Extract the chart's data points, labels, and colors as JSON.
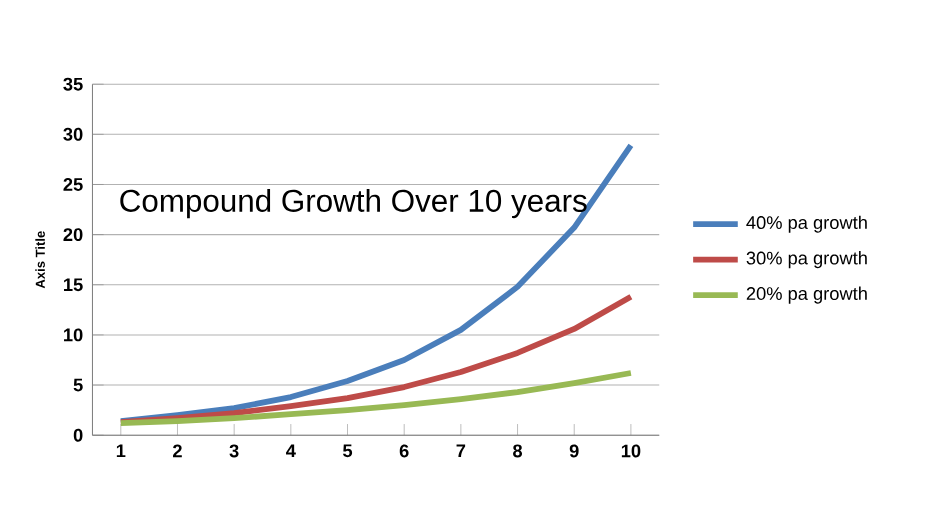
{
  "chart_data": {
    "type": "line",
    "title": "Compound Growth Over 10 years",
    "ylabel": "Axis Title",
    "categories": [
      "1",
      "2",
      "3",
      "4",
      "5",
      "6",
      "7",
      "8",
      "9",
      "10"
    ],
    "series": [
      {
        "name": "40% pa growth",
        "color": "#4a7ebb",
        "values": [
          1.4,
          2.0,
          2.7,
          3.8,
          5.4,
          7.5,
          10.5,
          14.8,
          20.7,
          28.9
        ]
      },
      {
        "name": "30% pa growth",
        "color": "#be4b48",
        "values": [
          1.3,
          1.7,
          2.2,
          2.9,
          3.7,
          4.8,
          6.3,
          8.2,
          10.6,
          13.8
        ]
      },
      {
        "name": "20% pa growth",
        "color": "#98b954",
        "values": [
          1.2,
          1.4,
          1.7,
          2.1,
          2.5,
          3.0,
          3.6,
          4.3,
          5.2,
          6.2
        ]
      }
    ],
    "ylim": [
      0,
      35
    ],
    "yticks": [
      0,
      5,
      10,
      15,
      20,
      25,
      30,
      35
    ],
    "grid": "y",
    "legend": "right",
    "marker": "none",
    "line_style": "solid"
  }
}
